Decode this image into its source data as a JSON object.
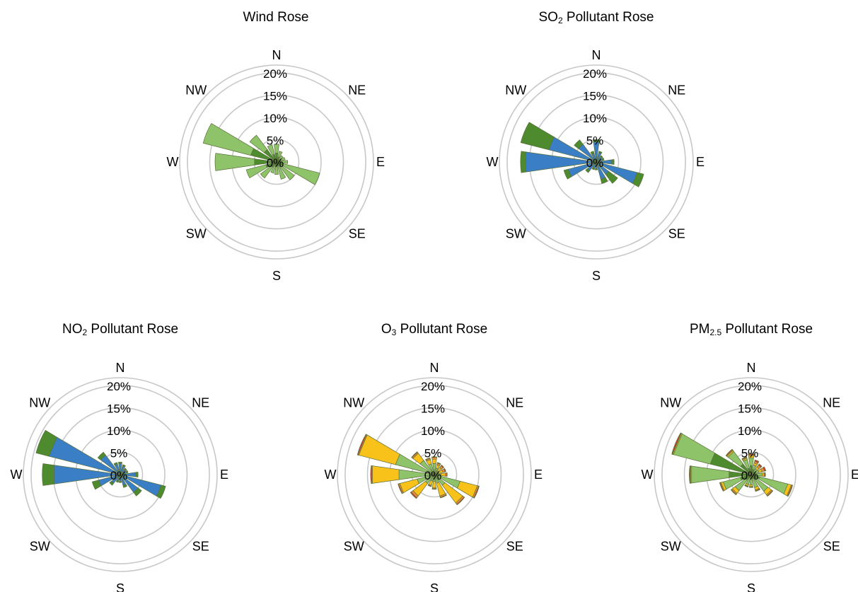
{
  "colors": {
    "grid": "#c8c8c8",
    "light_green": "#8ec36a",
    "dark_green": "#4e8a2e",
    "blue": "#3a7fc6",
    "yellow": "#f8c21a",
    "orange": "#f08b3a",
    "red": "#d63a2e",
    "outline": "#5a6e3a"
  },
  "panels": [
    {
      "title_main": "Wind Rose",
      "title_sub": "",
      "title_rest": ""
    },
    {
      "title_main": "SO",
      "title_sub": "2",
      "title_rest": " Pollutant Rose"
    },
    {
      "title_main": "NO",
      "title_sub": "2",
      "title_rest": " Pollutant Rose"
    },
    {
      "title_main": "O",
      "title_sub": "3",
      "title_rest": " Pollutant Rose"
    },
    {
      "title_main": "PM",
      "title_sub": "2.5",
      "title_rest": " Pollutant Rose"
    }
  ],
  "chart_data": [
    {
      "type": "radar",
      "subtype": "stacked-radial-bar",
      "title": "Wind Rose",
      "directions": [
        "N",
        "NNE",
        "NE",
        "ENE",
        "E",
        "ESE",
        "SE",
        "SSE",
        "S",
        "SSW",
        "SW",
        "WSW",
        "W",
        "WNW",
        "NW",
        "NNW"
      ],
      "direction_labels": [
        "N",
        "NE",
        "E",
        "SE",
        "S",
        "SW",
        "W",
        "NW"
      ],
      "r_ticks": [
        "0%",
        "5%",
        "10%",
        "15%",
        "20%"
      ],
      "r_max": 20,
      "series": [
        {
          "color": "dark_green",
          "values": [
            2.0,
            1.2,
            0.8,
            0.8,
            1.0,
            1.5,
            1.2,
            1.0,
            0.8,
            0.8,
            1.5,
            2.5,
            5.0,
            6.0,
            3.5,
            1.8
          ]
        },
        {
          "color": "light_green",
          "values": [
            2.0,
            1.3,
            1.0,
            1.2,
            1.5,
            8.5,
            3.8,
            3.0,
            2.0,
            1.8,
            3.0,
            4.5,
            8.8,
            11.0,
            4.0,
            2.2
          ]
        }
      ]
    },
    {
      "type": "radar",
      "subtype": "stacked-radial-bar",
      "title": "SO2 Pollutant Rose",
      "directions": [
        "N",
        "NNE",
        "NE",
        "ENE",
        "E",
        "ESE",
        "SE",
        "SSE",
        "S",
        "SSW",
        "SW",
        "WSW",
        "W",
        "WNW",
        "NW",
        "NNW"
      ],
      "direction_labels": [
        "N",
        "NE",
        "E",
        "SE",
        "S",
        "SW",
        "W",
        "NW"
      ],
      "r_ticks": [
        "0%",
        "5%",
        "10%",
        "15%",
        "20%"
      ],
      "r_max": 20,
      "series": [
        {
          "color": "blue",
          "values": [
            4.5,
            2.2,
            1.5,
            1.5,
            3.5,
            9.5,
            3.5,
            4.0,
            1.5,
            1.5,
            2.5,
            6.5,
            16.0,
            11.0,
            5.0,
            2.0
          ]
        },
        {
          "color": "dark_green",
          "values": [
            0.5,
            0.3,
            0.3,
            0.3,
            0.5,
            1.5,
            2.5,
            1.0,
            0.3,
            0.3,
            0.5,
            1.0,
            1.0,
            6.5,
            1.2,
            0.5
          ]
        }
      ]
    },
    {
      "type": "radar",
      "subtype": "stacked-radial-bar",
      "title": "NO2 Pollutant Rose",
      "directions": [
        "N",
        "NNE",
        "NE",
        "ENE",
        "E",
        "ESE",
        "SE",
        "SSE",
        "S",
        "SSW",
        "SW",
        "WSW",
        "W",
        "WNW",
        "NW",
        "NNW"
      ],
      "direction_labels": [
        "N",
        "NE",
        "E",
        "SE",
        "S",
        "SW",
        "W",
        "NW"
      ],
      "r_ticks": [
        "0%",
        "5%",
        "10%",
        "15%",
        "20%"
      ],
      "r_max": 20,
      "series": [
        {
          "color": "blue",
          "values": [
            2.5,
            2.0,
            1.5,
            1.5,
            3.5,
            9.5,
            5.0,
            2.5,
            1.5,
            1.5,
            2.5,
            5.0,
            15.0,
            16.5,
            5.5,
            2.5
          ]
        },
        {
          "color": "dark_green",
          "values": [
            0.3,
            0.3,
            0.3,
            0.3,
            0.5,
            1.0,
            1.0,
            0.5,
            0.3,
            0.3,
            0.5,
            1.5,
            2.5,
            3.0,
            0.8,
            0.3
          ]
        }
      ]
    },
    {
      "type": "radar",
      "subtype": "stacked-radial-bar",
      "title": "O3 Pollutant Rose",
      "directions": [
        "N",
        "NNE",
        "NE",
        "ENE",
        "E",
        "ESE",
        "SE",
        "SSE",
        "S",
        "SSW",
        "SW",
        "WSW",
        "W",
        "WNW",
        "NW",
        "NNW"
      ],
      "direction_labels": [
        "N",
        "NE",
        "E",
        "SE",
        "S",
        "SW",
        "W",
        "NW"
      ],
      "r_ticks": [
        "0%",
        "5%",
        "10%",
        "15%",
        "20%"
      ],
      "r_max": 20,
      "series": [
        {
          "color": "light_green",
          "values": [
            2.5,
            1.5,
            1.0,
            1.0,
            1.5,
            6.0,
            3.0,
            2.0,
            1.5,
            1.5,
            2.5,
            4.0,
            8.0,
            9.0,
            4.0,
            2.5
          ]
        },
        {
          "color": "yellow",
          "values": [
            1.0,
            0.8,
            1.0,
            1.0,
            1.0,
            4.0,
            5.0,
            3.0,
            1.5,
            1.0,
            3.5,
            4.0,
            6.0,
            8.5,
            2.0,
            1.0
          ]
        },
        {
          "color": "orange",
          "values": [
            0.4,
            0.4,
            0.5,
            0.5,
            0.3,
            0.3,
            0.4,
            0.3,
            0.2,
            0.2,
            0.5,
            0.3,
            0.2,
            0.2,
            0.3,
            0.3
          ]
        },
        {
          "color": "red",
          "values": [
            0.1,
            0.1,
            0.2,
            0.2,
            0.1,
            0.1,
            0.1,
            0.1,
            0.1,
            0.1,
            0.2,
            0.1,
            0.1,
            0.1,
            0.1,
            0.1
          ]
        }
      ]
    },
    {
      "type": "radar",
      "subtype": "stacked-radial-bar",
      "title": "PM2.5 Pollutant Rose",
      "directions": [
        "N",
        "NNE",
        "NE",
        "ENE",
        "E",
        "ESE",
        "SE",
        "SSE",
        "S",
        "SSW",
        "SW",
        "WSW",
        "W",
        "WNW",
        "NW",
        "NNW"
      ],
      "direction_labels": [
        "N",
        "NE",
        "E",
        "SE",
        "S",
        "SW",
        "W",
        "NW"
      ],
      "r_ticks": [
        "0%",
        "5%",
        "10%",
        "15%",
        "20%"
      ],
      "r_max": 20,
      "series": [
        {
          "color": "dark_green",
          "values": [
            2.0,
            1.2,
            0.8,
            0.8,
            1.0,
            2.0,
            1.2,
            1.0,
            0.8,
            0.8,
            1.5,
            2.5,
            5.0,
            9.5,
            3.0,
            1.5
          ]
        },
        {
          "color": "light_green",
          "values": [
            1.8,
            1.0,
            0.8,
            1.0,
            1.5,
            6.5,
            3.5,
            2.0,
            1.5,
            1.5,
            3.0,
            4.0,
            8.5,
            8.5,
            3.5,
            2.0
          ]
        },
        {
          "color": "yellow",
          "values": [
            0.4,
            0.5,
            0.6,
            0.7,
            0.4,
            0.8,
            1.0,
            0.6,
            0.4,
            0.4,
            0.8,
            0.5,
            0.2,
            0.2,
            0.3,
            0.3
          ]
        },
        {
          "color": "orange",
          "values": [
            0.3,
            0.4,
            0.5,
            0.6,
            0.2,
            0.2,
            0.3,
            0.2,
            0.1,
            0.1,
            0.3,
            0.2,
            0.1,
            0.1,
            0.2,
            0.2
          ]
        },
        {
          "color": "red",
          "values": [
            0.2,
            0.3,
            0.3,
            0.3,
            0.1,
            0.1,
            0.1,
            0.1,
            0.1,
            0.1,
            0.1,
            0.1,
            0.1,
            0.1,
            0.1,
            0.1
          ]
        }
      ]
    }
  ]
}
